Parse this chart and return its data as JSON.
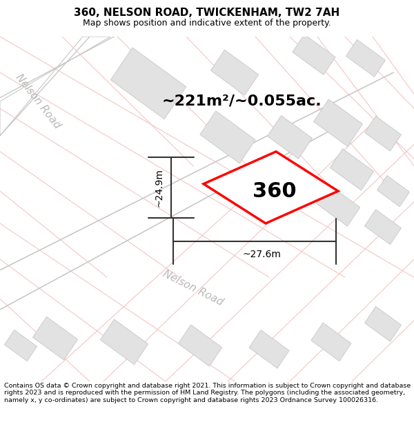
{
  "title": "360, NELSON ROAD, TWICKENHAM, TW2 7AH",
  "subtitle": "Map shows position and indicative extent of the property.",
  "area_label": "~221m²/~0.055ac.",
  "plot_number": "360",
  "width_label": "~27.6m",
  "height_label": "~24.9m",
  "footer": "Contains OS data © Crown copyright and database right 2021. This information is subject to Crown copyright and database rights 2023 and is reproduced with the permission of HM Land Registry. The polygons (including the associated geometry, namely x, y co-ordinates) are subject to Crown copyright and database rights 2023 Ordnance Survey 100026316.",
  "bg_color": "#ffffff",
  "map_bg": "#f7f7f7",
  "road_color": "#f5c5c5",
  "road_line_color": "#c8c8c8",
  "building_color": "#e2e2e2",
  "building_edge": "#cccccc",
  "plot_color": "#ff0000",
  "road_label_color": "#b0b0b0",
  "road_name": "Nelson Road",
  "title_fontsize": 11,
  "subtitle_fontsize": 9,
  "area_fontsize": 16,
  "plot_num_fontsize": 22,
  "dim_fontsize": 10,
  "road_fontsize": 11
}
